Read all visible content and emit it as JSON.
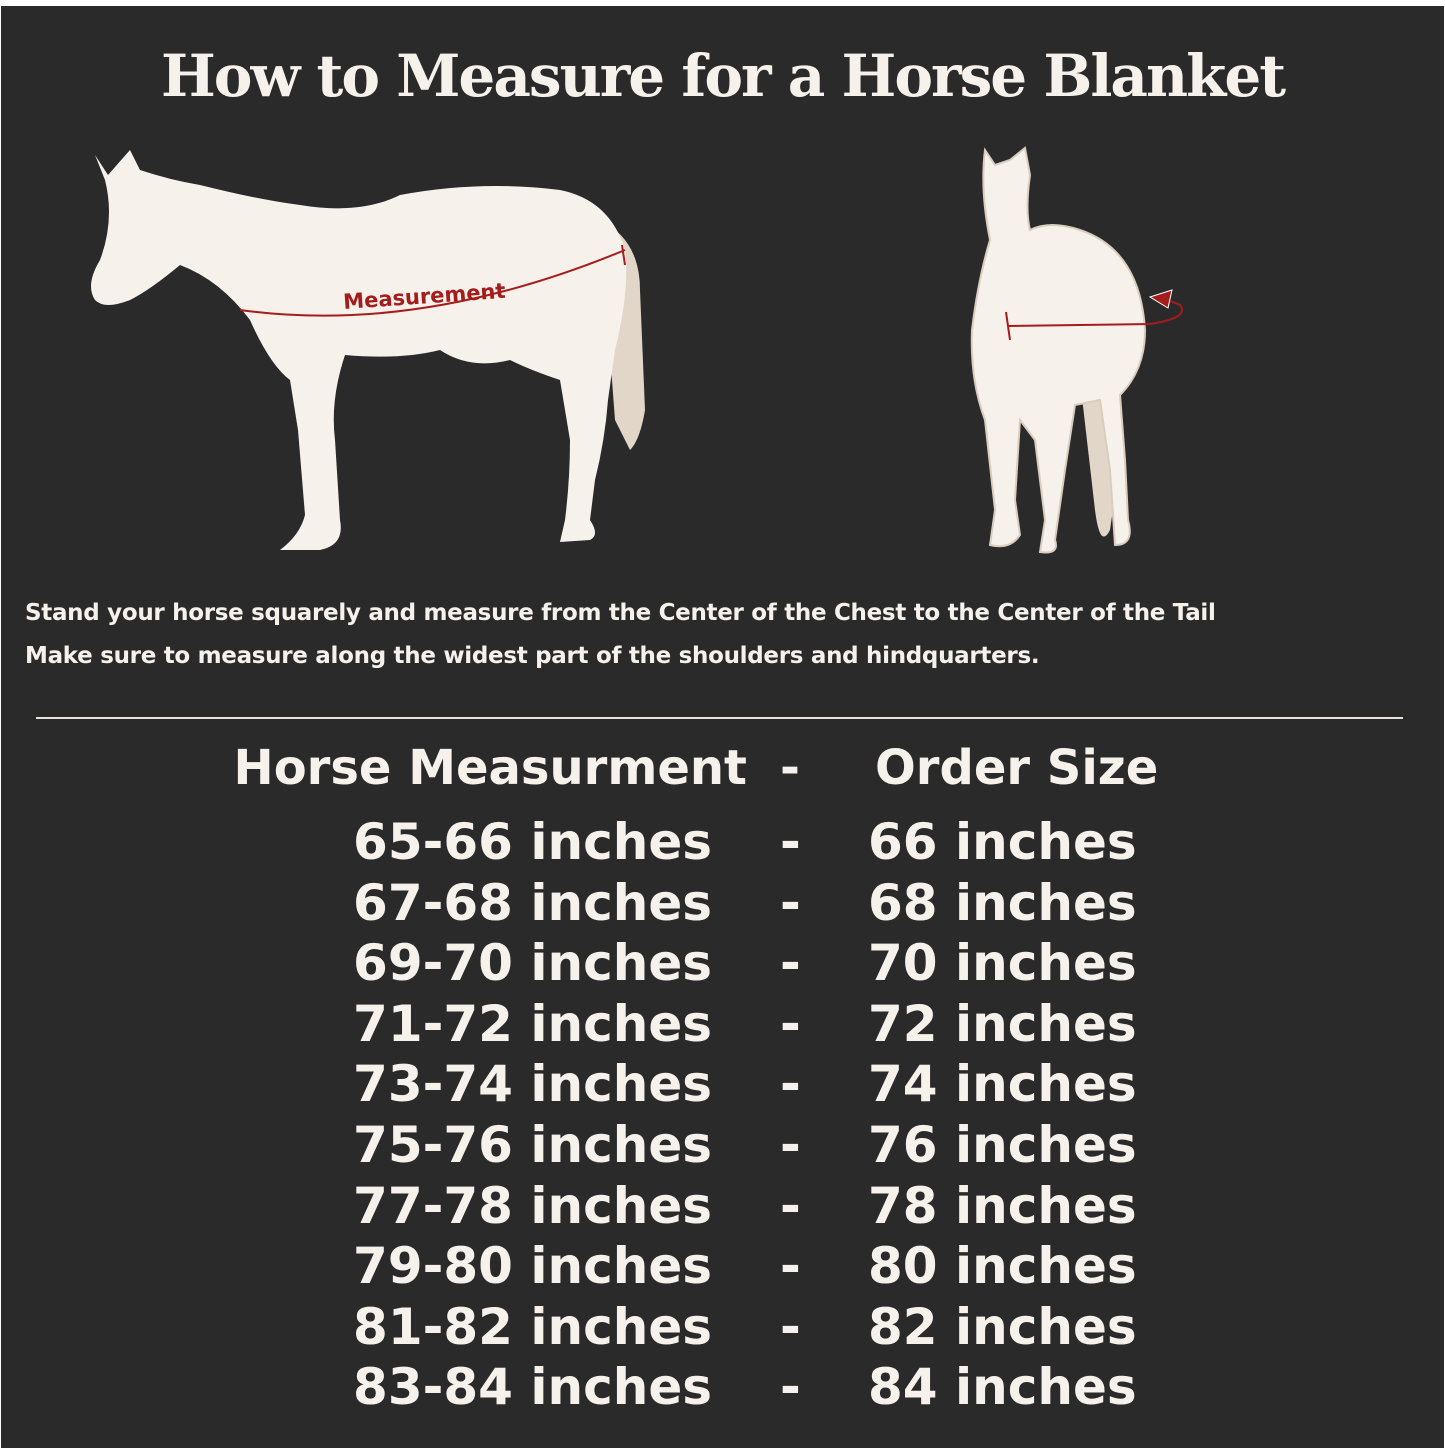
{
  "title": "How to Measure for a Horse Blanket",
  "illustration": {
    "measurement_label": "Measurement",
    "colors": {
      "background": "#2b2a2b",
      "horse": "#f6f1ea",
      "tail": "#e2d6c8",
      "measure_line": "#a51c1c"
    }
  },
  "instructions": [
    "Stand your horse squarely and measure from the Center of the Chest to the Center of the Tail",
    "Make sure to measure along the widest part of the shoulders and hindquarters."
  ],
  "table": {
    "header": {
      "left": "Horse Measurment",
      "sep": "-",
      "right": "Order Size"
    },
    "rows": [
      {
        "measurement": "65-66 inches",
        "sep": "-",
        "size": "66 inches"
      },
      {
        "measurement": "67-68 inches",
        "sep": "-",
        "size": "68 inches"
      },
      {
        "measurement": "69-70 inches",
        "sep": "-",
        "size": "70 inches"
      },
      {
        "measurement": "71-72 inches",
        "sep": "-",
        "size": "72 inches"
      },
      {
        "measurement": "73-74 inches",
        "sep": "-",
        "size": "74 inches"
      },
      {
        "measurement": "75-76 inches",
        "sep": "-",
        "size": "76 inches"
      },
      {
        "measurement": "77-78 inches",
        "sep": "-",
        "size": "78 inches"
      },
      {
        "measurement": "79-80 inches",
        "sep": "-",
        "size": "80 inches"
      },
      {
        "measurement": "81-82 inches",
        "sep": "-",
        "size": "82 inches"
      },
      {
        "measurement": "83-84 inches",
        "sep": "-",
        "size": "84 inches"
      }
    ]
  }
}
